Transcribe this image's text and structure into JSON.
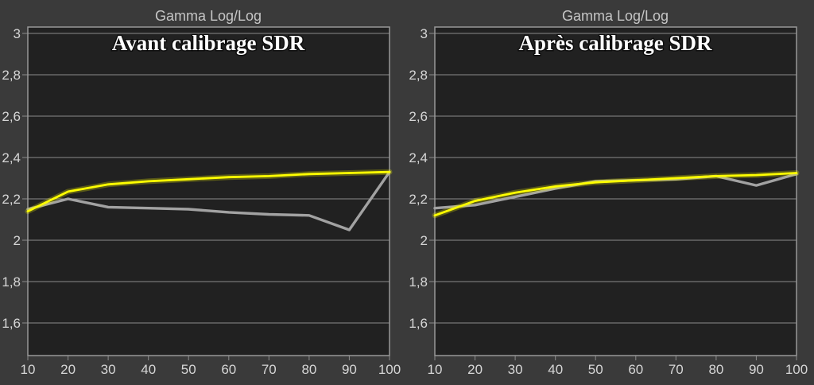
{
  "colors": {
    "background": "#3a3a3a",
    "plot_background": "#212121",
    "grid_line": "#8c8c8c",
    "frame_border": "#989898",
    "tick_label": "#d6d6d6",
    "top_title": "#c6c6c6",
    "chart_title": "#ffffff",
    "reference_curve": "#ffff00",
    "measured_curve": "#a2a2a2"
  },
  "chart_data": [
    {
      "type": "line",
      "title": "Gamma Log/Log",
      "subtitle": "Avant calibrage SDR",
      "xlabel": "",
      "ylabel": "",
      "xlim": [
        10,
        100
      ],
      "ylim": [
        1.44,
        3.03
      ],
      "grid": true,
      "legend": "none",
      "x": [
        10,
        20,
        30,
        40,
        50,
        60,
        70,
        80,
        90,
        100
      ],
      "x_tick_labels": [
        "10",
        "20",
        "30",
        "40",
        "50",
        "60",
        "70",
        "80",
        "90",
        "100"
      ],
      "y_tick_values": [
        3,
        2.8,
        2.6,
        2.4,
        2.2,
        2,
        1.8,
        1.6
      ],
      "y_tick_labels": [
        "3",
        "2,8",
        "2,6",
        "2,4",
        "2,2",
        "2",
        "1,8",
        "1,6"
      ],
      "series": [
        {
          "name": "measured",
          "color": "#a2a2a2",
          "values": [
            2.15,
            2.2,
            2.16,
            2.155,
            2.15,
            2.135,
            2.125,
            2.12,
            2.05,
            2.33
          ]
        },
        {
          "name": "reference",
          "color": "#ffff00",
          "values": [
            2.14,
            2.235,
            2.27,
            2.285,
            2.295,
            2.305,
            2.31,
            2.32,
            2.325,
            2.33
          ]
        }
      ]
    },
    {
      "type": "line",
      "title": "Gamma Log/Log",
      "subtitle": "Après calibrage SDR",
      "xlabel": "",
      "ylabel": "",
      "xlim": [
        10,
        100
      ],
      "ylim": [
        1.44,
        3.03
      ],
      "grid": true,
      "legend": "none",
      "x": [
        10,
        20,
        30,
        40,
        50,
        60,
        70,
        80,
        90,
        100
      ],
      "x_tick_labels": [
        "10",
        "20",
        "30",
        "40",
        "50",
        "60",
        "70",
        "80",
        "90",
        "100"
      ],
      "y_tick_values": [
        3,
        2.8,
        2.6,
        2.4,
        2.2,
        2,
        1.8,
        1.6
      ],
      "y_tick_labels": [
        "3",
        "2,8",
        "2,6",
        "2,4",
        "2,2",
        "2",
        "1,8",
        "1,6"
      ],
      "series": [
        {
          "name": "measured",
          "color": "#a2a2a2",
          "values": [
            2.155,
            2.17,
            2.21,
            2.25,
            2.285,
            2.29,
            2.295,
            2.31,
            2.265,
            2.32
          ]
        },
        {
          "name": "reference",
          "color": "#ffff00",
          "values": [
            2.12,
            2.19,
            2.23,
            2.26,
            2.28,
            2.29,
            2.3,
            2.31,
            2.315,
            2.325
          ]
        }
      ]
    }
  ]
}
